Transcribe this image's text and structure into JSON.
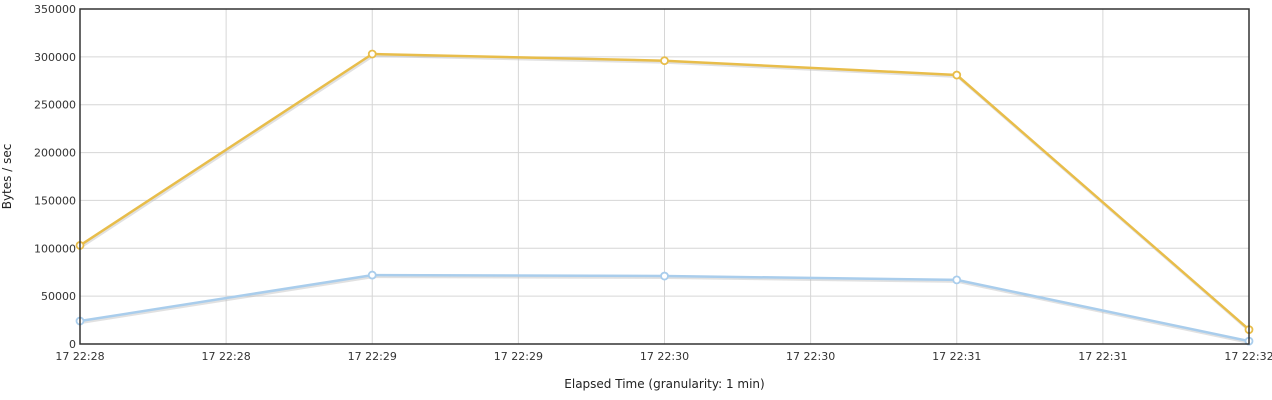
{
  "chart_data": {
    "type": "line",
    "xlabel": "Elapsed Time (granularity: 1 min)",
    "ylabel": "Bytes / sec",
    "ylim": [
      0,
      350000
    ],
    "y_ticks": [
      0,
      50000,
      100000,
      150000,
      200000,
      250000,
      300000,
      350000
    ],
    "x_tick_labels": [
      "17 22:28",
      "17 22:28",
      "17 22:29",
      "17 22:29",
      "17 22:30",
      "17 22:30",
      "17 22:31",
      "17 22:31",
      "17 22:32"
    ],
    "x_point_labels": [
      "17 22:28",
      "17 22:29",
      "17 22:30",
      "17 22:31",
      "17 22:32"
    ],
    "grid": true,
    "series": [
      {
        "color": "#e8bd4a",
        "values": [
          103000,
          303000,
          296000,
          281000,
          15000
        ]
      },
      {
        "color": "#a9cdec",
        "values": [
          24000,
          72000,
          71000,
          67000,
          3000
        ]
      }
    ]
  }
}
